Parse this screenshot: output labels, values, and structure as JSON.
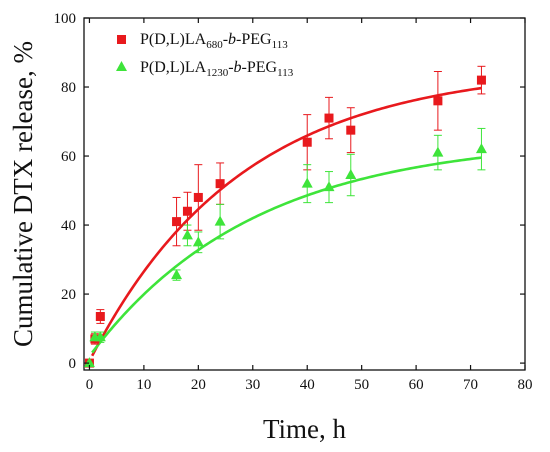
{
  "chart_data": {
    "type": "scatter",
    "xlabel": "Time, h",
    "ylabel": "Cumulative DTX release, %",
    "xlim": [
      -1,
      80
    ],
    "ylim": [
      -2,
      100
    ],
    "xticks": [
      0,
      10,
      20,
      30,
      40,
      50,
      60,
      70,
      80
    ],
    "yticks": [
      0,
      20,
      40,
      60,
      80,
      100
    ],
    "legend_position": "top-left",
    "series": [
      {
        "name": "P(D,L)LA680-b-PEG113",
        "legend": {
          "prefix": "P(D,L)LA",
          "sub1": "680",
          "mid": "-",
          "ital": "b",
          "mid2": "-PEG",
          "sub2": "113"
        },
        "color": "#e8191d",
        "marker": "square",
        "x": [
          0,
          1,
          2,
          16,
          18,
          20,
          24,
          40,
          44,
          48,
          64,
          72
        ],
        "y": [
          0,
          7,
          13.5,
          41,
          44,
          48,
          52,
          64,
          71,
          67.5,
          76,
          82
        ],
        "err": [
          0.5,
          1.5,
          2,
          7,
          5.5,
          9.5,
          6,
          8,
          6,
          6.5,
          8.5,
          4
        ],
        "fit": {
          "model": "exponential",
          "a": 80.3,
          "k": 0.0524,
          "b": 86.0,
          "k2": 0.0362,
          "b2": 0.6
        }
      },
      {
        "name": "P(D,L)LA1230-b-PEG113",
        "legend": {
          "prefix": "P(D,L)LA",
          "sub1": "1230",
          "mid": "-",
          "ital": "b",
          "mid2": "-PEG",
          "sub2": "113"
        },
        "color": "#3ee43a",
        "marker": "triangle",
        "x": [
          0,
          1,
          2,
          16,
          18,
          20,
          24,
          40,
          44,
          48,
          64,
          72
        ],
        "y": [
          0,
          7.5,
          7.5,
          25.5,
          37,
          35,
          41,
          52,
          51,
          54.5,
          61,
          62
        ],
        "err": [
          0.5,
          1.5,
          1.5,
          1.5,
          3,
          3,
          5,
          5.5,
          4.5,
          6,
          5,
          6
        ],
        "fit": {
          "b": 65.3,
          "k2": 0.0333,
          "b2": 2.0
        }
      }
    ]
  }
}
